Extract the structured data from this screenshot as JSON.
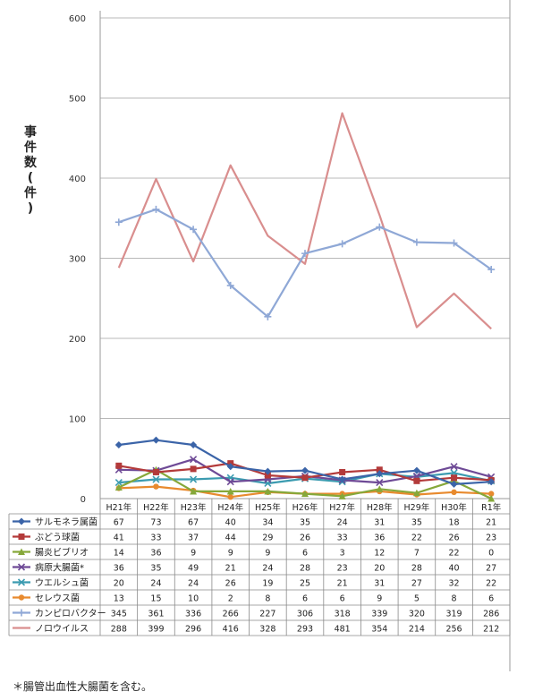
{
  "chart_data": {
    "type": "line",
    "ylabel": "事件数(件)",
    "ylim": [
      0,
      600
    ],
    "yticks": [
      "0",
      "100",
      "200",
      "300",
      "400",
      "500",
      "600"
    ],
    "categories": [
      "H21年",
      "H22年",
      "H23年",
      "H24年",
      "H25年",
      "H26年",
      "H27年",
      "H28年",
      "H29年",
      "H30年",
      "R1年"
    ],
    "grid": "horizontal",
    "legend_placement": "data-table-left",
    "series": [
      {
        "name": "サルモネラ属菌",
        "color": "#3b64a8",
        "marker": "diamond",
        "values": [
          67,
          73,
          67,
          40,
          34,
          35,
          24,
          31,
          35,
          18,
          21
        ]
      },
      {
        "name": "ぶどう球菌",
        "color": "#b33a3a",
        "marker": "square",
        "values": [
          41,
          33,
          37,
          44,
          29,
          26,
          33,
          36,
          22,
          26,
          23
        ]
      },
      {
        "name": "腸炎ビブリオ",
        "color": "#86a83a",
        "marker": "triangle",
        "values": [
          14,
          36,
          9,
          9,
          9,
          6,
          3,
          12,
          7,
          22,
          0
        ]
      },
      {
        "name": "病原大腸菌*",
        "color": "#6e4a96",
        "marker": "x",
        "values": [
          36,
          35,
          49,
          21,
          24,
          28,
          23,
          20,
          28,
          40,
          27
        ]
      },
      {
        "name": "ウエルシュ菌",
        "color": "#3b9bb0",
        "marker": "x",
        "values": [
          20,
          24,
          24,
          26,
          19,
          25,
          21,
          31,
          27,
          32,
          22
        ]
      },
      {
        "name": "セレウス菌",
        "color": "#e88a2e",
        "marker": "circle",
        "values": [
          13,
          15,
          10,
          2,
          8,
          6,
          6,
          9,
          5,
          8,
          6
        ]
      },
      {
        "name": "カンピロバクター",
        "color": "#8fa8d6",
        "marker": "plus",
        "values": [
          345,
          361,
          336,
          266,
          227,
          306,
          318,
          339,
          320,
          319,
          286
        ]
      },
      {
        "name": "ノロウイルス",
        "color": "#d98e8e",
        "marker": "none",
        "values": [
          288,
          399,
          296,
          416,
          328,
          293,
          481,
          354,
          214,
          256,
          212
        ]
      }
    ]
  },
  "footnote": "＊腸管出血性大腸菌を含む。"
}
